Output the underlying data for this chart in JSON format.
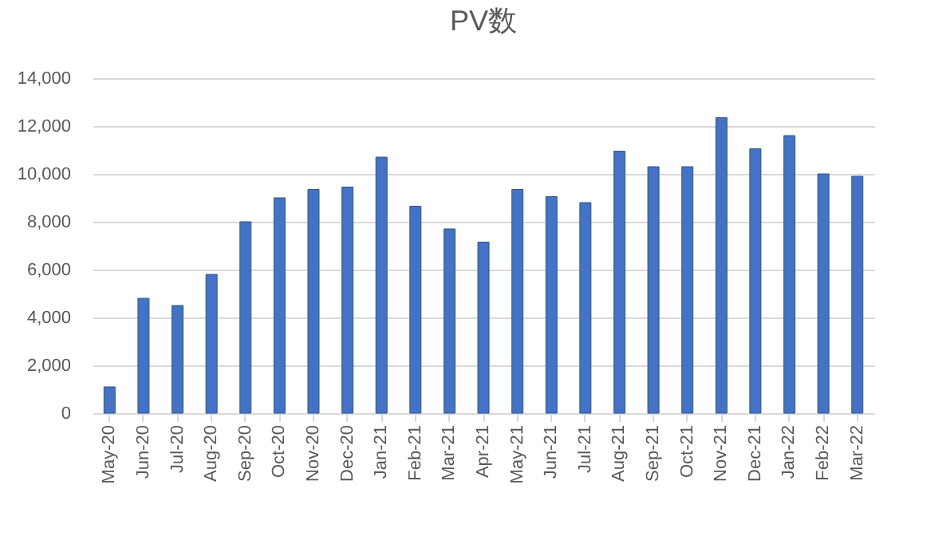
{
  "chart_data": {
    "type": "bar",
    "title": "PV数",
    "categories": [
      "May-20",
      "Jun-20",
      "Jul-20",
      "Aug-20",
      "Sep-20",
      "Oct-20",
      "Nov-20",
      "Dec-20",
      "Jan-21",
      "Feb-21",
      "Mar-21",
      "Apr-21",
      "May-21",
      "Jun-21",
      "Jul-21",
      "Aug-21",
      "Sep-21",
      "Oct-21",
      "Nov-21",
      "Dec-21",
      "Jan-22",
      "Feb-22",
      "Mar-22"
    ],
    "values": [
      1100,
      4800,
      4500,
      5800,
      8000,
      9000,
      9350,
      9450,
      10700,
      8650,
      7700,
      7150,
      9350,
      9050,
      8800,
      10950,
      10300,
      10300,
      12350,
      11050,
      11600,
      10000,
      9900
    ],
    "color": "#4472c4",
    "ylim": [
      0,
      14000
    ],
    "yticks": [
      0,
      {
        "value": 2000,
        "label": "2,000"
      },
      {
        "value": 4000,
        "label": "4,000"
      },
      {
        "value": 6000,
        "label": "6,000"
      },
      {
        "value": 8000,
        "label": "8,000"
      },
      {
        "value": 10000,
        "label": "10,000"
      },
      {
        "value": 12000,
        "label": "12,000"
      },
      {
        "value": 14000,
        "label": "14,000"
      }
    ],
    "grid": "y"
  }
}
